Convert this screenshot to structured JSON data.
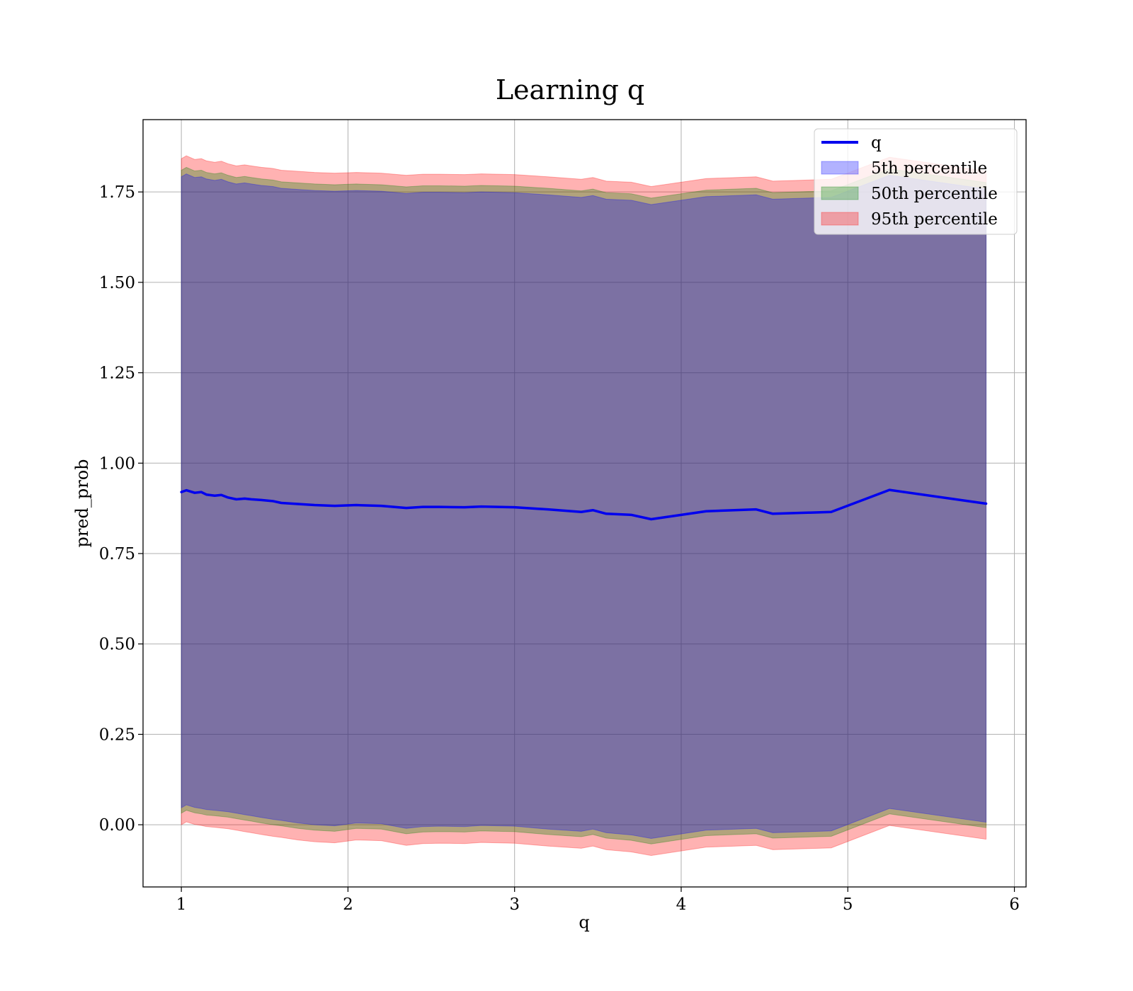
{
  "chart_data": {
    "type": "line",
    "title": "Learning q",
    "xlabel": "q",
    "ylabel": "pred_prob",
    "xlim": [
      0.77,
      6.07
    ],
    "ylim": [
      -0.172,
      1.95
    ],
    "xticks": [
      1,
      2,
      3,
      4,
      5,
      6
    ],
    "xtick_labels": [
      "1",
      "2",
      "3",
      "4",
      "5",
      "6"
    ],
    "yticks": [
      0.0,
      0.25,
      0.5,
      0.75,
      1.0,
      1.25,
      1.5,
      1.75
    ],
    "ytick_labels": [
      "0.00",
      "0.25",
      "0.50",
      "0.75",
      "1.00",
      "1.25",
      "1.50",
      "1.75"
    ],
    "grid": true,
    "legend_position": "top-right",
    "colors": {
      "line": "#0000ee",
      "band_5th": "#0000ff",
      "band_50th": "#008000",
      "band_95th": "#ff0000"
    },
    "line": {
      "name": "q",
      "x": [
        1.0,
        1.03,
        1.08,
        1.12,
        1.15,
        1.2,
        1.24,
        1.28,
        1.33,
        1.38,
        1.42,
        1.48,
        1.55,
        1.6,
        1.7,
        1.8,
        1.92,
        2.05,
        2.2,
        2.35,
        2.45,
        2.55,
        2.7,
        2.8,
        3.0,
        3.2,
        3.4,
        3.47,
        3.55,
        3.7,
        3.82,
        4.15,
        4.45,
        4.55,
        4.9,
        5.25,
        5.83
      ],
      "y": [
        0.92,
        0.925,
        0.918,
        0.92,
        0.913,
        0.91,
        0.912,
        0.905,
        0.9,
        0.902,
        0.9,
        0.898,
        0.895,
        0.89,
        0.887,
        0.884,
        0.882,
        0.884,
        0.882,
        0.876,
        0.879,
        0.879,
        0.878,
        0.88,
        0.878,
        0.872,
        0.865,
        0.87,
        0.86,
        0.857,
        0.845,
        0.867,
        0.872,
        0.86,
        0.865,
        0.926,
        0.888
      ]
    },
    "bands": [
      {
        "name": "5th percentile",
        "lower": [
          0.047,
          0.055,
          0.048,
          0.045,
          0.042,
          0.04,
          0.038,
          0.036,
          0.032,
          0.028,
          0.025,
          0.02,
          0.015,
          0.012,
          0.005,
          0.0,
          -0.003,
          0.005,
          0.003,
          -0.01,
          -0.005,
          -0.004,
          -0.005,
          -0.002,
          -0.004,
          -0.012,
          -0.018,
          -0.012,
          -0.022,
          -0.028,
          -0.038,
          -0.015,
          -0.01,
          -0.022,
          -0.017,
          0.045,
          0.007
        ],
        "upper": [
          1.792,
          1.8,
          1.79,
          1.792,
          1.786,
          1.782,
          1.785,
          1.778,
          1.772,
          1.775,
          1.772,
          1.768,
          1.765,
          1.76,
          1.757,
          1.754,
          1.752,
          1.754,
          1.752,
          1.746,
          1.749,
          1.749,
          1.748,
          1.75,
          1.748,
          1.742,
          1.735,
          1.74,
          1.73,
          1.727,
          1.715,
          1.737,
          1.742,
          1.73,
          1.735,
          1.796,
          1.758
        ]
      },
      {
        "name": "50th percentile",
        "lower": [
          0.032,
          0.04,
          0.033,
          0.03,
          0.027,
          0.025,
          0.023,
          0.021,
          0.017,
          0.013,
          0.01,
          0.005,
          0.0,
          -0.003,
          -0.01,
          -0.015,
          -0.018,
          -0.01,
          -0.012,
          -0.025,
          -0.02,
          -0.019,
          -0.02,
          -0.017,
          -0.019,
          -0.027,
          -0.033,
          -0.027,
          -0.037,
          -0.043,
          -0.053,
          -0.03,
          -0.025,
          -0.037,
          -0.032,
          0.03,
          -0.008
        ],
        "upper": [
          1.81,
          1.818,
          1.808,
          1.81,
          1.804,
          1.8,
          1.803,
          1.796,
          1.79,
          1.793,
          1.79,
          1.786,
          1.783,
          1.778,
          1.775,
          1.772,
          1.77,
          1.772,
          1.77,
          1.764,
          1.767,
          1.767,
          1.766,
          1.768,
          1.766,
          1.76,
          1.753,
          1.758,
          1.748,
          1.745,
          1.733,
          1.755,
          1.76,
          1.748,
          1.753,
          1.814,
          1.776
        ]
      },
      {
        "name": "95th percentile",
        "lower": [
          0.0,
          0.008,
          0.001,
          -0.002,
          -0.005,
          -0.007,
          -0.009,
          -0.011,
          -0.015,
          -0.019,
          -0.022,
          -0.027,
          -0.032,
          -0.035,
          -0.042,
          -0.047,
          -0.05,
          -0.042,
          -0.044,
          -0.057,
          -0.052,
          -0.051,
          -0.052,
          -0.049,
          -0.051,
          -0.059,
          -0.065,
          -0.059,
          -0.069,
          -0.075,
          -0.085,
          -0.062,
          -0.057,
          -0.069,
          -0.064,
          -0.002,
          -0.04
        ],
        "upper": [
          1.842,
          1.85,
          1.84,
          1.842,
          1.836,
          1.832,
          1.835,
          1.828,
          1.822,
          1.825,
          1.822,
          1.818,
          1.815,
          1.81,
          1.807,
          1.804,
          1.802,
          1.804,
          1.802,
          1.796,
          1.799,
          1.799,
          1.798,
          1.8,
          1.798,
          1.792,
          1.785,
          1.79,
          1.78,
          1.777,
          1.765,
          1.787,
          1.792,
          1.78,
          1.785,
          1.846,
          1.808
        ]
      }
    ]
  }
}
